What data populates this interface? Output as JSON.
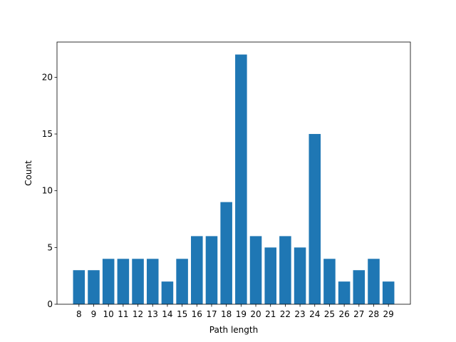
{
  "chart_data": {
    "type": "bar",
    "x_label": "Path length",
    "y_label": "Count",
    "x": [
      8,
      9,
      10,
      11,
      12,
      13,
      14,
      15,
      16,
      17,
      18,
      19,
      20,
      21,
      22,
      23,
      24,
      25,
      26,
      27,
      28,
      29
    ],
    "values": [
      3,
      3,
      4,
      4,
      4,
      4,
      2,
      4,
      6,
      6,
      9,
      22,
      6,
      5,
      6,
      5,
      15,
      4,
      2,
      3,
      4,
      2
    ],
    "color": "#1f77b4",
    "bar_width": 0.8,
    "xlim": [
      6.51,
      30.49
    ],
    "xticks": [
      8,
      9,
      10,
      11,
      12,
      13,
      14,
      15,
      16,
      17,
      18,
      19,
      20,
      21,
      22,
      23,
      24,
      25,
      26,
      27,
      28,
      29
    ],
    "ylim": [
      0,
      23.1
    ],
    "yticks": [
      0,
      5,
      10,
      15,
      20
    ]
  }
}
